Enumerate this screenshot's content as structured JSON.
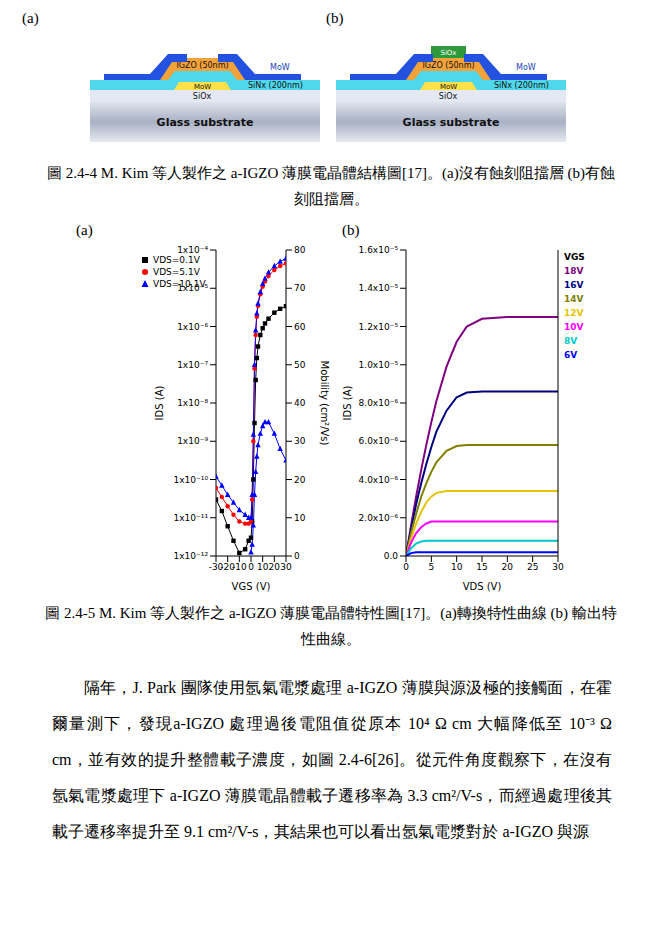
{
  "figure_1": {
    "panel_labels": [
      "(a)",
      "(b)"
    ],
    "panels": [
      {
        "igzo": "IGZO (50nm)",
        "source_drain": "MoW",
        "gate": "MoW",
        "insulator": "SiNx (200nm)",
        "buffer": "SiOx",
        "substrate": "Glass substrate"
      },
      {
        "etch_stop": "SiOx",
        "igzo": "IGZO (50nm)",
        "source_drain": "MoW",
        "gate": "MoW",
        "insulator": "SiNx (200nm)",
        "buffer": "SiOx",
        "substrate": "Glass substrate"
      }
    ],
    "caption": "圖 2.4-4 M. Kim 等人製作之 a-IGZO 薄膜電晶體結構圖[17]。(a)沒有蝕刻阻擋層 (b)有蝕刻阻擋層。"
  },
  "figure_2": {
    "panel_labels": [
      "(a)",
      "(b)"
    ],
    "caption": "圖 2.4-5 M. Kim 等人製作之 a-IGZO 薄膜電晶體特性圖[17]。(a)轉換特性曲線 (b) 輸出特性曲線。"
  },
  "chart_data": [
    {
      "type": "line",
      "x_label": "VGS (V)",
      "y_label": "IDS (A)",
      "y2_label": "Mobility (cm²/Vs)",
      "x": [
        -30,
        -25,
        -20,
        -15,
        -10,
        -5,
        -2,
        0,
        1,
        2,
        3,
        4,
        5,
        6,
        8,
        10,
        12,
        15,
        20,
        25,
        30
      ],
      "series": [
        {
          "name": "VDS=0.1V",
          "color": "#000000",
          "marker": "square",
          "values": [
            3e-11,
            1.5e-11,
            6e-12,
            2.5e-12,
            1.2e-12,
            1.5e-12,
            2.5e-12,
            3e-12,
            8e-12,
            1e-10,
            3e-09,
            4e-08,
            1.5e-07,
            3e-07,
            6e-07,
            9e-07,
            1.2e-06,
            1.6e-06,
            2.3e-06,
            2.9e-06,
            3.4e-06
          ]
        },
        {
          "name": "VDS=5.1V",
          "color": "#ff0000",
          "marker": "circle",
          "values": [
            6e-11,
            3.5e-11,
            2e-11,
            1.2e-11,
            8e-12,
            7e-12,
            7e-12,
            8e-12,
            3e-11,
            1e-09,
            8e-08,
            6e-07,
            1.8e-06,
            3.5e-06,
            7e-06,
            1.1e-05,
            1.5e-05,
            2.1e-05,
            3e-05,
            3.8e-05,
            4.5e-05
          ]
        },
        {
          "name": "VDS=10.1V",
          "color": "#0000ff",
          "marker": "triangle",
          "values": [
            1.2e-10,
            7e-11,
            4e-11,
            2.5e-11,
            1.6e-11,
            1.2e-11,
            1e-11,
            1e-11,
            4e-11,
            1.5e-09,
            1e-07,
            8e-07,
            2.2e-06,
            4e-06,
            8e-06,
            1.3e-05,
            1.8e-05,
            2.6e-05,
            3.8e-05,
            5e-05,
            6e-05
          ]
        },
        {
          "color": "#0000ff",
          "marker": "triangle",
          "axis": "y2",
          "values": [
            null,
            null,
            null,
            null,
            null,
            null,
            null,
            1,
            3,
            8,
            16,
            22,
            26,
            29,
            32,
            34,
            35,
            35,
            32,
            28,
            25
          ]
        }
      ],
      "xlim": [
        -30,
        30
      ],
      "xticks": [
        -30,
        -20,
        -10,
        0,
        10,
        20,
        30
      ],
      "ylim": [
        1e-12,
        0.0001
      ],
      "yticks": [
        {
          "value": 1e-12,
          "label": "1x10⁻¹²"
        },
        {
          "value": 1e-11,
          "label": "1x10⁻¹¹"
        },
        {
          "value": 1e-10,
          "label": "1x10⁻¹⁰"
        },
        {
          "value": 1e-09,
          "label": "1x10⁻⁹"
        },
        {
          "value": 1e-08,
          "label": "1x10⁻⁸"
        },
        {
          "value": 1e-07,
          "label": "1x10⁻⁷"
        },
        {
          "value": 1e-06,
          "label": "1x10⁻⁶"
        },
        {
          "value": 1e-05,
          "label": "1x10⁻⁵"
        },
        {
          "value": 0.0001,
          "label": "1x10⁻⁴"
        }
      ],
      "y2lim": [
        0,
        80
      ],
      "y2ticks": [
        0,
        10,
        20,
        30,
        40,
        50,
        60,
        70,
        80
      ],
      "log": "y",
      "legend": "upper left"
    },
    {
      "type": "line",
      "x_label": "VDS (V)",
      "y_label": "IDS (A)",
      "legend_title": "VGS",
      "x": [
        0,
        1,
        2,
        3,
        4,
        5,
        6,
        8,
        10,
        12,
        15,
        20,
        25,
        30
      ],
      "series": [
        {
          "name": "18V",
          "color": "#800080",
          "values": [
            0,
            1.6e-06,
            3.1e-06,
            4.5e-06,
            5.8e-06,
            7e-06,
            8.1e-06,
            9.9e-06,
            1.12e-05,
            1.2e-05,
            1.24e-05,
            1.25e-05,
            1.25e-05,
            1.25e-05
          ]
        },
        {
          "name": "16V",
          "color": "#000080",
          "values": [
            0,
            1.4e-06,
            2.7e-06,
            3.8e-06,
            4.8e-06,
            5.7e-06,
            6.5e-06,
            7.6e-06,
            8.3e-06,
            8.55e-06,
            8.6e-06,
            8.6e-06,
            8.6e-06,
            8.6e-06
          ]
        },
        {
          "name": "14V",
          "color": "#808000",
          "values": [
            0,
            1.2e-06,
            2.2e-06,
            3.1e-06,
            3.8e-06,
            4.4e-06,
            4.9e-06,
            5.5e-06,
            5.75e-06,
            5.8e-06,
            5.8e-06,
            5.8e-06,
            5.8e-06,
            5.8e-06
          ]
        },
        {
          "name": "12V",
          "color": "#e6c200",
          "values": [
            0,
            9e-07,
            1.7e-06,
            2.3e-06,
            2.8e-06,
            3.1e-06,
            3.3e-06,
            3.4e-06,
            3.4e-06,
            3.4e-06,
            3.4e-06,
            3.4e-06,
            3.4e-06,
            3.4e-06
          ]
        },
        {
          "name": "10V",
          "color": "#ff00ff",
          "values": [
            0,
            7e-07,
            1.2e-06,
            1.5e-06,
            1.7e-06,
            1.8e-06,
            1.8e-06,
            1.8e-06,
            1.8e-06,
            1.8e-06,
            1.8e-06,
            1.8e-06,
            1.8e-06,
            1.8e-06
          ]
        },
        {
          "name": "8V",
          "color": "#00c8c8",
          "values": [
            0,
            4e-07,
            6.5e-07,
            7.6e-07,
            8e-07,
            8e-07,
            8e-07,
            8e-07,
            8e-07,
            8e-07,
            8e-07,
            8e-07,
            8e-07,
            8e-07
          ]
        },
        {
          "name": "6V",
          "color": "#0000ff",
          "values": [
            0,
            1.5e-07,
            2e-07,
            2e-07,
            2e-07,
            2e-07,
            2e-07,
            2e-07,
            2e-07,
            2e-07,
            2e-07,
            2e-07,
            2e-07,
            2e-07
          ]
        }
      ],
      "xlim": [
        0,
        30
      ],
      "xticks": [
        0,
        5,
        10,
        15,
        20,
        25,
        30
      ],
      "ylim": [
        0,
        1.6e-05
      ],
      "yticks": [
        {
          "value": 0,
          "label": "0.0"
        },
        {
          "value": 2e-06,
          "label": "2.0x10⁻⁶"
        },
        {
          "value": 4e-06,
          "label": "4.0x10⁻⁶"
        },
        {
          "value": 6e-06,
          "label": "6.0x10⁻⁶"
        },
        {
          "value": 8e-06,
          "label": "8.0x10⁻⁶"
        },
        {
          "value": 1e-05,
          "label": "1.0x10⁻⁵"
        },
        {
          "value": 1.2e-05,
          "label": "1.2x10⁻⁵"
        },
        {
          "value": 1.4e-05,
          "label": "1.4x10⁻⁵"
        },
        {
          "value": 1.6e-05,
          "label": "1.6x10⁻⁵"
        }
      ],
      "legend": "right"
    }
  ],
  "body": "隔年，J. Park 團隊使用氬氣電漿處理 a-IGZO 薄膜與源汲極的接觸面，在霍爾量測下，發現a-IGZO 處理過後電阻值從原本 10⁴ Ω cm 大幅降低至 10⁻³ Ω cm，並有效的提升整體載子濃度，如圖 2.4-6[26]。從元件角度觀察下，在沒有氬氣電漿處理下 a-IGZO 薄膜電晶體載子遷移率為 3.3 cm²/V-s，而經過處理後其載子遷移率提升至 9.1 cm²/V-s，其結果也可以看出氬氣電漿對於 a-IGZO 與源"
}
